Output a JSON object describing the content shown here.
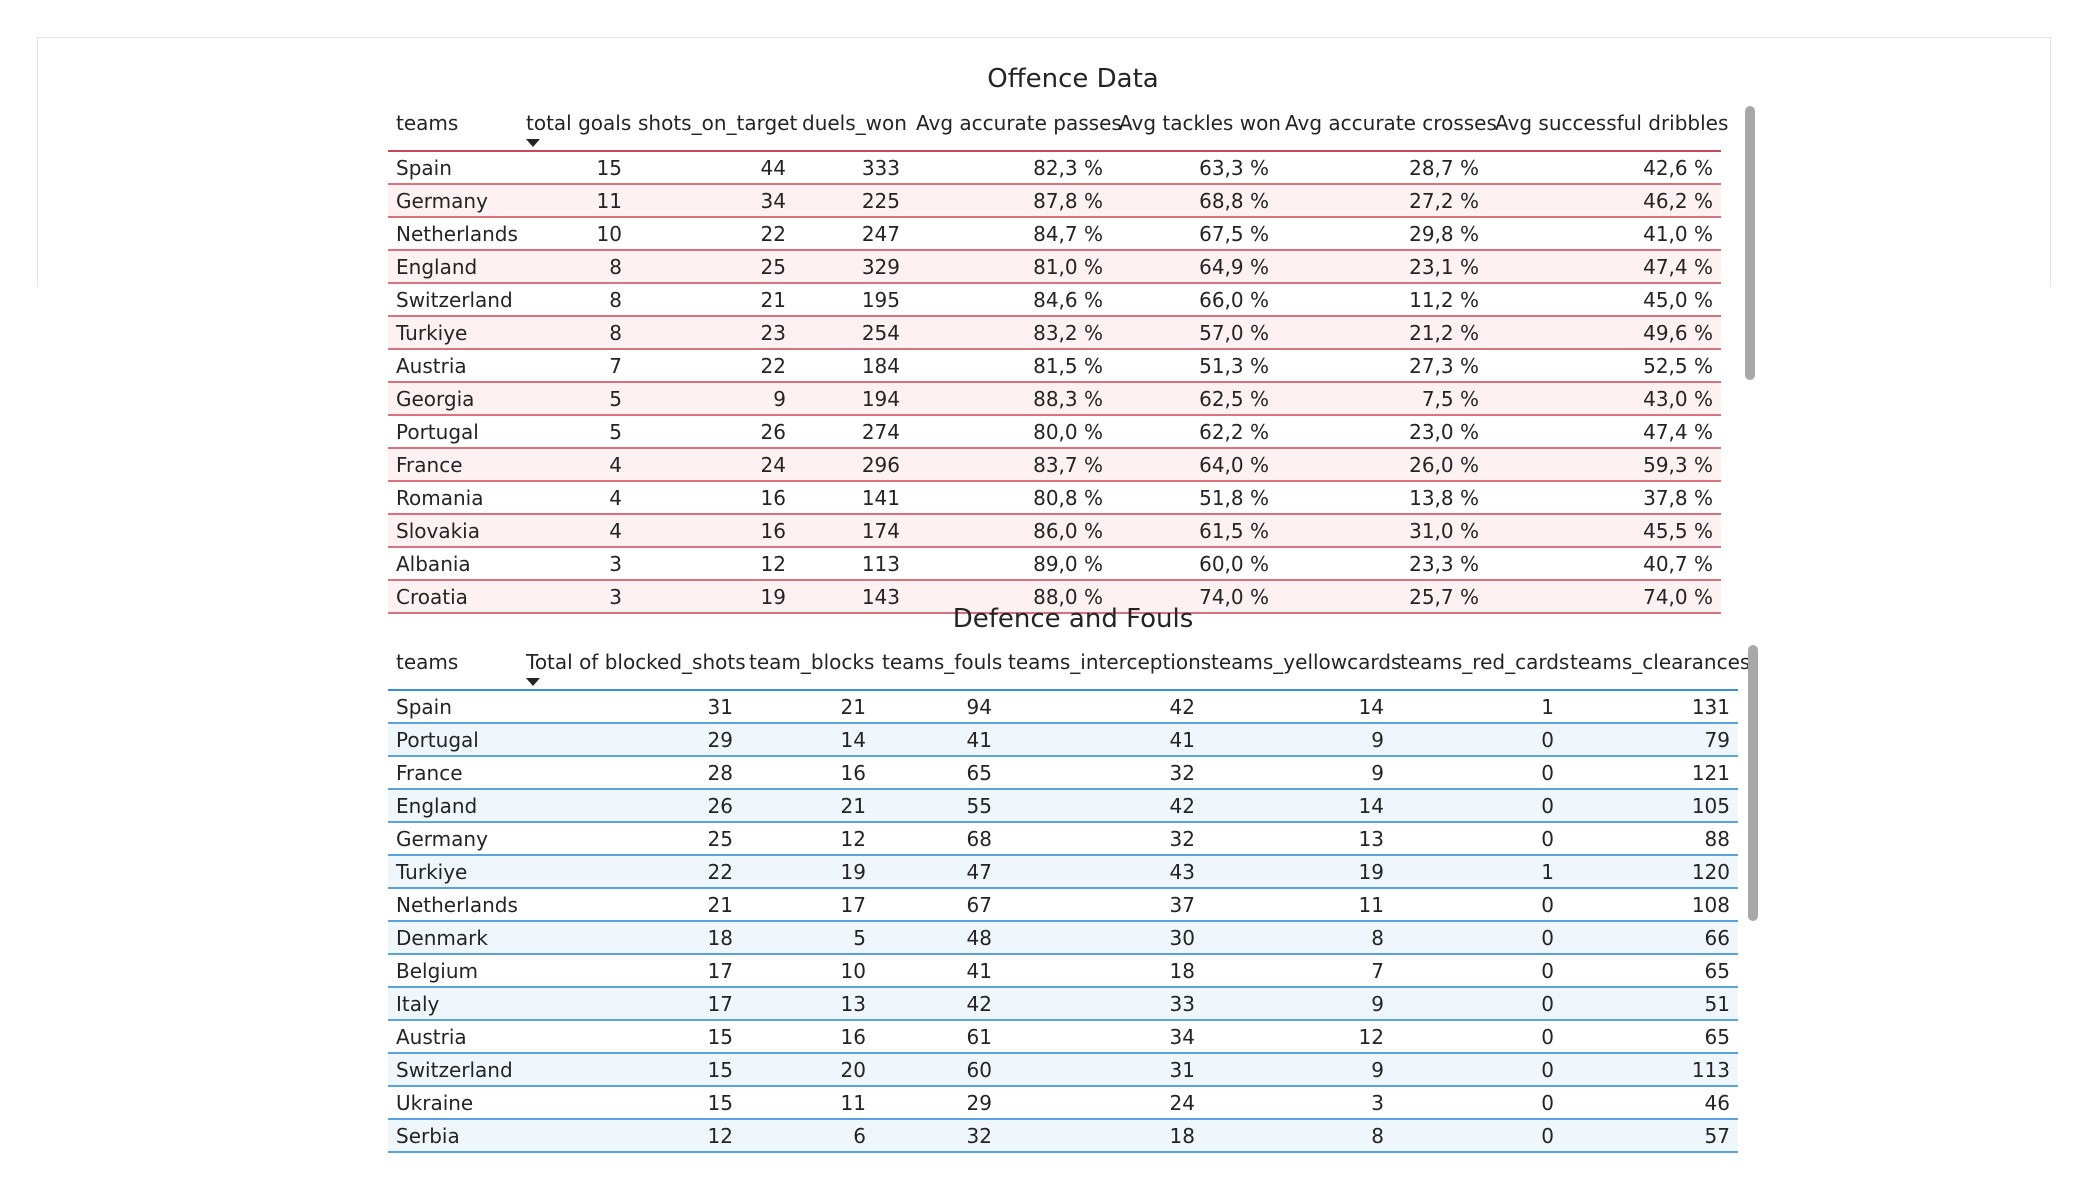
{
  "offence": {
    "title": "Offence Data",
    "columns": [
      "teams",
      "total goals",
      "shots_on_target",
      "duels_won",
      "Avg accurate passes",
      "Avg tackles won",
      "Avg accurate crosses",
      "Avg successful dribbles"
    ],
    "rows": [
      [
        "Spain",
        "15",
        "44",
        "333",
        "82,3 %",
        "63,3 %",
        "28,7 %",
        "42,6 %"
      ],
      [
        "Germany",
        "11",
        "34",
        "225",
        "87,8 %",
        "68,8 %",
        "27,2 %",
        "46,2 %"
      ],
      [
        "Netherlands",
        "10",
        "22",
        "247",
        "84,7 %",
        "67,5 %",
        "29,8 %",
        "41,0 %"
      ],
      [
        "England",
        "8",
        "25",
        "329",
        "81,0 %",
        "64,9 %",
        "23,1 %",
        "47,4 %"
      ],
      [
        "Switzerland",
        "8",
        "21",
        "195",
        "84,6 %",
        "66,0 %",
        "11,2 %",
        "45,0 %"
      ],
      [
        "Turkiye",
        "8",
        "23",
        "254",
        "83,2 %",
        "57,0 %",
        "21,2 %",
        "49,6 %"
      ],
      [
        "Austria",
        "7",
        "22",
        "184",
        "81,5 %",
        "51,3 %",
        "27,3 %",
        "52,5 %"
      ],
      [
        "Georgia",
        "5",
        "9",
        "194",
        "88,3 %",
        "62,5 %",
        "7,5 %",
        "43,0 %"
      ],
      [
        "Portugal",
        "5",
        "26",
        "274",
        "80,0 %",
        "62,2 %",
        "23,0 %",
        "47,4 %"
      ],
      [
        "France",
        "4",
        "24",
        "296",
        "83,7 %",
        "64,0 %",
        "26,0 %",
        "59,3 %"
      ],
      [
        "Romania",
        "4",
        "16",
        "141",
        "80,8 %",
        "51,8 %",
        "13,8 %",
        "37,8 %"
      ],
      [
        "Slovakia",
        "4",
        "16",
        "174",
        "86,0 %",
        "61,5 %",
        "31,0 %",
        "45,5 %"
      ],
      [
        "Albania",
        "3",
        "12",
        "113",
        "89,0 %",
        "60,0 %",
        "23,3 %",
        "40,7 %"
      ],
      [
        "Croatia",
        "3",
        "19",
        "143",
        "88,0 %",
        "74,0 %",
        "25,7 %",
        "74,0 %"
      ]
    ]
  },
  "defence": {
    "title": "Defence and Fouls",
    "columns": [
      "teams",
      "Total of blocked_shots",
      "team_blocks",
      "teams_fouls",
      "teams_interceptions",
      "teams_yellowcards",
      "teams_red_cards",
      "teams_clearances"
    ],
    "rows": [
      [
        "Spain",
        "31",
        "21",
        "94",
        "42",
        "14",
        "1",
        "131"
      ],
      [
        "Portugal",
        "29",
        "14",
        "41",
        "41",
        "9",
        "0",
        "79"
      ],
      [
        "France",
        "28",
        "16",
        "65",
        "32",
        "9",
        "0",
        "121"
      ],
      [
        "England",
        "26",
        "21",
        "55",
        "42",
        "14",
        "0",
        "105"
      ],
      [
        "Germany",
        "25",
        "12",
        "68",
        "32",
        "13",
        "0",
        "88"
      ],
      [
        "Turkiye",
        "22",
        "19",
        "47",
        "43",
        "19",
        "1",
        "120"
      ],
      [
        "Netherlands",
        "21",
        "17",
        "67",
        "37",
        "11",
        "0",
        "108"
      ],
      [
        "Denmark",
        "18",
        "5",
        "48",
        "30",
        "8",
        "0",
        "66"
      ],
      [
        "Belgium",
        "17",
        "10",
        "41",
        "18",
        "7",
        "0",
        "65"
      ],
      [
        "Italy",
        "17",
        "13",
        "42",
        "33",
        "9",
        "0",
        "51"
      ],
      [
        "Austria",
        "15",
        "16",
        "61",
        "34",
        "12",
        "0",
        "65"
      ],
      [
        "Switzerland",
        "15",
        "20",
        "60",
        "31",
        "9",
        "0",
        "113"
      ],
      [
        "Ukraine",
        "15",
        "11",
        "29",
        "24",
        "3",
        "0",
        "46"
      ],
      [
        "Serbia",
        "12",
        "6",
        "32",
        "18",
        "8",
        "0",
        "57"
      ]
    ]
  },
  "colors": {
    "offence_accent": "#c8485a",
    "defence_accent": "#3c8fd2",
    "scrollbar": "#a8a8a8"
  },
  "icons": {
    "sort_indicator": "sort-descending-icon"
  }
}
